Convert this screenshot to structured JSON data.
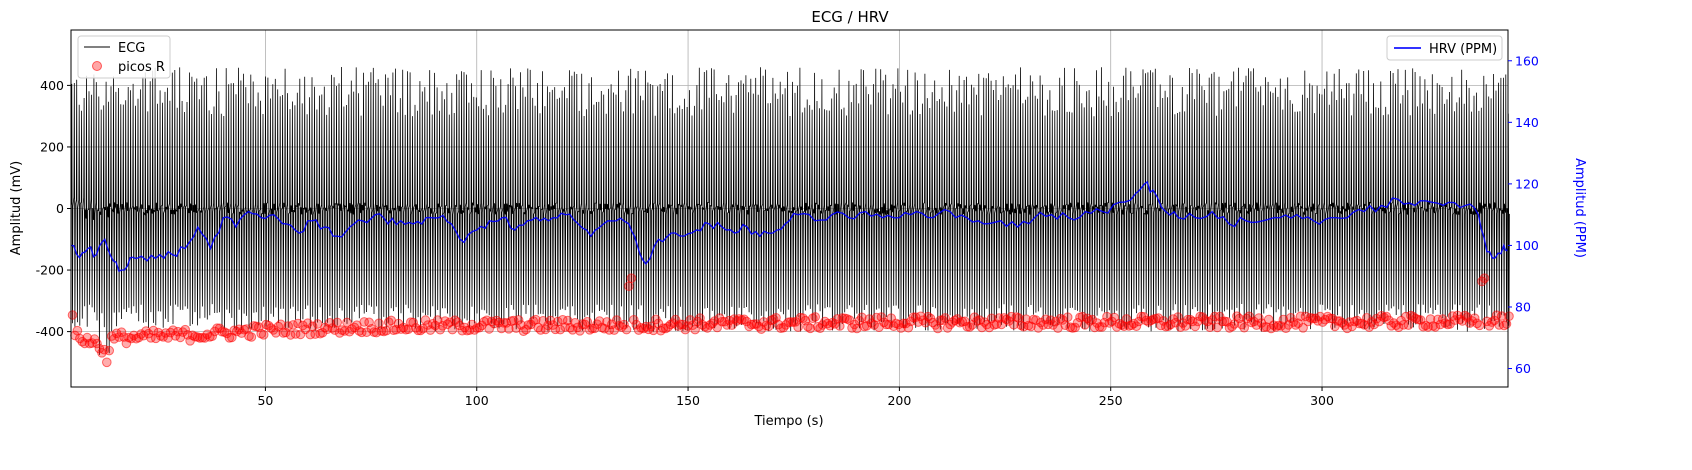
{
  "chart_data": {
    "type": "line",
    "title": "ECG / HRV",
    "xlabel": "Tiempo (s)",
    "ylabel": "Amplitud (mV)",
    "ylabel_right": "Amplitud (PPM)",
    "xlim": [
      4,
      344
    ],
    "ylim": [
      -580,
      580
    ],
    "ylim_right": [
      54,
      170
    ],
    "x_ticks": [
      50,
      100,
      150,
      200,
      250,
      300
    ],
    "y_ticks": [
      -400,
      -200,
      0,
      200,
      400
    ],
    "y_ticks_right": [
      60,
      80,
      100,
      120,
      140,
      160
    ],
    "grid": true,
    "legend_left": {
      "position": "upper-left",
      "entries": [
        {
          "name": "ECG",
          "color": "#000000",
          "marker": "line"
        },
        {
          "name": "picos R",
          "color": "#ff0000",
          "marker": "circle"
        }
      ]
    },
    "legend_right": {
      "position": "upper-right",
      "entries": [
        {
          "name": "HRV (PPM)",
          "color": "#0000ff",
          "marker": "line"
        }
      ]
    },
    "series": [
      {
        "name": "ECG",
        "axis": "left",
        "color": "#000000",
        "style": "dense-oscillation",
        "beat_interval_s": 0.58,
        "peak_min": 300,
        "peak_max": 460,
        "trough_min": -400,
        "trough_max": -310,
        "baseline_noise": 40
      },
      {
        "name": "picos R",
        "axis": "left",
        "color": "#ff0000",
        "style": "markers",
        "level_points": [
          {
            "x": 4.5,
            "y": -410
          },
          {
            "x": 10,
            "y": -440
          },
          {
            "x": 15,
            "y": -420
          },
          {
            "x": 25,
            "y": -415
          },
          {
            "x": 40,
            "y": -405
          },
          {
            "x": 50,
            "y": -395
          },
          {
            "x": 70,
            "y": -385
          },
          {
            "x": 100,
            "y": -380
          },
          {
            "x": 136,
            "y": -380
          },
          {
            "x": 150,
            "y": -375
          },
          {
            "x": 200,
            "y": -370
          },
          {
            "x": 250,
            "y": -370
          },
          {
            "x": 300,
            "y": -370
          },
          {
            "x": 343,
            "y": -365
          }
        ]
      },
      {
        "name": "HRV (PPM)",
        "axis": "right",
        "color": "#0000ff",
        "style": "line",
        "points": [
          {
            "x": 4,
            "y": 100
          },
          {
            "x": 6,
            "y": 96
          },
          {
            "x": 8,
            "y": 99
          },
          {
            "x": 10,
            "y": 97
          },
          {
            "x": 12,
            "y": 102
          },
          {
            "x": 14,
            "y": 95
          },
          {
            "x": 16,
            "y": 92
          },
          {
            "x": 18,
            "y": 96
          },
          {
            "x": 20,
            "y": 96
          },
          {
            "x": 22,
            "y": 95
          },
          {
            "x": 25,
            "y": 97
          },
          {
            "x": 28,
            "y": 97
          },
          {
            "x": 31,
            "y": 99
          },
          {
            "x": 34,
            "y": 106
          },
          {
            "x": 37,
            "y": 99
          },
          {
            "x": 40,
            "y": 109
          },
          {
            "x": 43,
            "y": 106
          },
          {
            "x": 46,
            "y": 111
          },
          {
            "x": 49,
            "y": 109
          },
          {
            "x": 52,
            "y": 110
          },
          {
            "x": 55,
            "y": 107
          },
          {
            "x": 58,
            "y": 104
          },
          {
            "x": 61,
            "y": 108
          },
          {
            "x": 64,
            "y": 106
          },
          {
            "x": 67,
            "y": 103
          },
          {
            "x": 70,
            "y": 106
          },
          {
            "x": 73,
            "y": 108
          },
          {
            "x": 76,
            "y": 110
          },
          {
            "x": 79,
            "y": 107
          },
          {
            "x": 82,
            "y": 108
          },
          {
            "x": 85,
            "y": 107
          },
          {
            "x": 88,
            "y": 109
          },
          {
            "x": 91,
            "y": 109
          },
          {
            "x": 94,
            "y": 107
          },
          {
            "x": 97,
            "y": 101
          },
          {
            "x": 100,
            "y": 105
          },
          {
            "x": 103,
            "y": 108
          },
          {
            "x": 106,
            "y": 109
          },
          {
            "x": 109,
            "y": 105
          },
          {
            "x": 112,
            "y": 108
          },
          {
            "x": 115,
            "y": 108
          },
          {
            "x": 118,
            "y": 109
          },
          {
            "x": 121,
            "y": 110
          },
          {
            "x": 124,
            "y": 107
          },
          {
            "x": 127,
            "y": 103
          },
          {
            "x": 130,
            "y": 107
          },
          {
            "x": 133,
            "y": 108
          },
          {
            "x": 136,
            "y": 107
          },
          {
            "x": 138,
            "y": 100
          },
          {
            "x": 140,
            "y": 94
          },
          {
            "x": 143,
            "y": 102
          },
          {
            "x": 146,
            "y": 104
          },
          {
            "x": 149,
            "y": 103
          },
          {
            "x": 152,
            "y": 105
          },
          {
            "x": 155,
            "y": 107
          },
          {
            "x": 158,
            "y": 106
          },
          {
            "x": 161,
            "y": 104
          },
          {
            "x": 164,
            "y": 106
          },
          {
            "x": 167,
            "y": 103
          },
          {
            "x": 170,
            "y": 104
          },
          {
            "x": 173,
            "y": 107
          },
          {
            "x": 176,
            "y": 110
          },
          {
            "x": 180,
            "y": 108
          },
          {
            "x": 184,
            "y": 110
          },
          {
            "x": 188,
            "y": 109
          },
          {
            "x": 192,
            "y": 111
          },
          {
            "x": 196,
            "y": 109
          },
          {
            "x": 200,
            "y": 109
          },
          {
            "x": 204,
            "y": 111
          },
          {
            "x": 208,
            "y": 109
          },
          {
            "x": 212,
            "y": 111
          },
          {
            "x": 216,
            "y": 109
          },
          {
            "x": 220,
            "y": 107
          },
          {
            "x": 224,
            "y": 108
          },
          {
            "x": 228,
            "y": 106
          },
          {
            "x": 232,
            "y": 109
          },
          {
            "x": 236,
            "y": 110
          },
          {
            "x": 240,
            "y": 109
          },
          {
            "x": 244,
            "y": 111
          },
          {
            "x": 248,
            "y": 111
          },
          {
            "x": 252,
            "y": 114
          },
          {
            "x": 256,
            "y": 117
          },
          {
            "x": 258,
            "y": 120
          },
          {
            "x": 260,
            "y": 118
          },
          {
            "x": 263,
            "y": 111
          },
          {
            "x": 266,
            "y": 109
          },
          {
            "x": 270,
            "y": 109
          },
          {
            "x": 274,
            "y": 111
          },
          {
            "x": 278,
            "y": 107
          },
          {
            "x": 282,
            "y": 108
          },
          {
            "x": 286,
            "y": 108
          },
          {
            "x": 290,
            "y": 109
          },
          {
            "x": 294,
            "y": 110
          },
          {
            "x": 298,
            "y": 108
          },
          {
            "x": 302,
            "y": 109
          },
          {
            "x": 306,
            "y": 109
          },
          {
            "x": 310,
            "y": 111
          },
          {
            "x": 314,
            "y": 113
          },
          {
            "x": 318,
            "y": 115
          },
          {
            "x": 322,
            "y": 113
          },
          {
            "x": 326,
            "y": 114
          },
          {
            "x": 330,
            "y": 114
          },
          {
            "x": 334,
            "y": 113
          },
          {
            "x": 337,
            "y": 110
          },
          {
            "x": 339,
            "y": 98
          },
          {
            "x": 341,
            "y": 96
          },
          {
            "x": 343,
            "y": 100
          },
          {
            "x": 344,
            "y": 99
          }
        ]
      }
    ]
  }
}
